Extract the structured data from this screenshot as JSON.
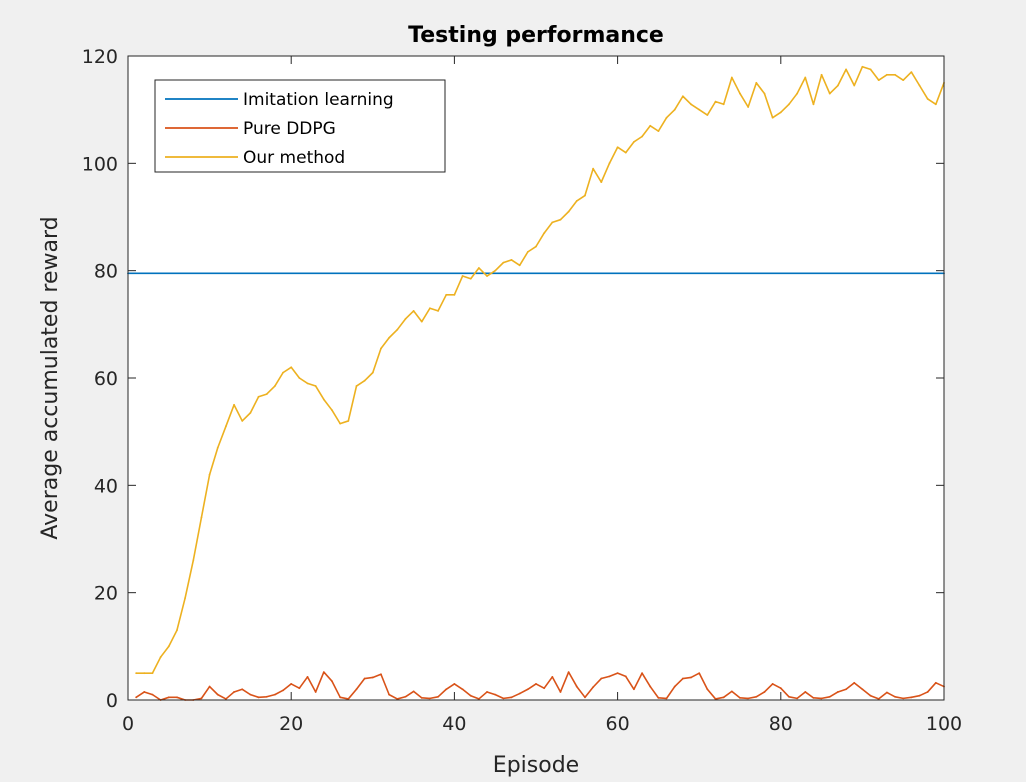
{
  "chart_data": {
    "type": "line",
    "title": "Testing performance",
    "xlabel": "Episode",
    "ylabel": "Average accumulated reward",
    "xlim": [
      0,
      100
    ],
    "ylim": [
      0,
      120
    ],
    "xticks": [
      0,
      20,
      40,
      60,
      80,
      100
    ],
    "yticks": [
      0,
      20,
      40,
      60,
      80,
      100,
      120
    ],
    "grid": false,
    "legend_position": "top-left",
    "series": [
      {
        "name": "Imitation learning",
        "color": "#0072BD",
        "x": [
          0,
          100
        ],
        "y": [
          79.5,
          79.5
        ]
      },
      {
        "name": "Pure DDPG",
        "color": "#D95319",
        "x": [
          1,
          2,
          3,
          4,
          5,
          6,
          7,
          8,
          9,
          10,
          11,
          12,
          13,
          14,
          15,
          16,
          17,
          18,
          19,
          20,
          21,
          22,
          23,
          24,
          25,
          26,
          27,
          28,
          29,
          30,
          31,
          32,
          33,
          34,
          35,
          36,
          37,
          38,
          39,
          40,
          41,
          42,
          43,
          44,
          45,
          46,
          47,
          48,
          49,
          50,
          51,
          52,
          53,
          54,
          55,
          56,
          57,
          58,
          59,
          60,
          61,
          62,
          63,
          64,
          65,
          66,
          67,
          68,
          69,
          70,
          71,
          72,
          73,
          74,
          75,
          76,
          77,
          78,
          79,
          80,
          81,
          82,
          83,
          84,
          85,
          86,
          87,
          88,
          89,
          90,
          91,
          92,
          93,
          94,
          95,
          96,
          97,
          98,
          99,
          100
        ],
        "y": [
          0.5,
          1.5,
          1,
          0,
          0.5,
          0.5,
          0,
          0,
          0.3,
          2.5,
          1,
          0.2,
          1.5,
          2,
          1,
          0.5,
          0.6,
          1,
          1.8,
          3,
          2.2,
          4.3,
          1.5,
          5.2,
          3.5,
          0.5,
          0.2,
          2,
          4,
          4.2,
          4.8,
          1,
          0.2,
          0.6,
          1.6,
          0.4,
          0.3,
          0.6,
          2,
          3,
          2,
          0.8,
          0.2,
          1.5,
          1,
          0.3,
          0.5,
          1.2,
          2,
          3,
          2.2,
          4.3,
          1.5,
          5.2,
          2.5,
          0.5,
          2.4,
          4,
          4.4,
          5,
          4.4,
          2,
          5,
          2.5,
          0.4,
          0.3,
          2.5,
          4,
          4.2,
          5,
          2,
          0.2,
          0.5,
          1.6,
          0.4,
          0.3,
          0.6,
          1.5,
          3,
          2.2,
          0.6,
          0.3,
          1.5,
          0.4,
          0.3,
          0.6,
          1.5,
          2,
          3.2,
          2,
          0.8,
          0.2,
          1.4,
          0.6,
          0.3,
          0.5,
          0.8,
          1.5,
          3.2,
          2.5
        ]
      },
      {
        "name": "Our method",
        "color": "#EDB120",
        "x": [
          1,
          2,
          3,
          4,
          5,
          6,
          7,
          8,
          9,
          10,
          11,
          12,
          13,
          14,
          15,
          16,
          17,
          18,
          19,
          20,
          21,
          22,
          23,
          24,
          25,
          26,
          27,
          28,
          29,
          30,
          31,
          32,
          33,
          34,
          35,
          36,
          37,
          38,
          39,
          40,
          41,
          42,
          43,
          44,
          45,
          46,
          47,
          48,
          49,
          50,
          51,
          52,
          53,
          54,
          55,
          56,
          57,
          58,
          59,
          60,
          61,
          62,
          63,
          64,
          65,
          66,
          67,
          68,
          69,
          70,
          71,
          72,
          73,
          74,
          75,
          76,
          77,
          78,
          79,
          80,
          81,
          82,
          83,
          84,
          85,
          86,
          87,
          88,
          89,
          90,
          91,
          92,
          93,
          94,
          95,
          96,
          97,
          98,
          99,
          100
        ],
        "y": [
          5,
          5,
          5,
          8,
          10,
          13,
          19,
          26,
          34,
          42,
          47,
          51,
          55,
          52,
          53.5,
          56.5,
          57,
          58.5,
          61,
          62,
          60,
          59,
          58.5,
          56,
          54,
          51.5,
          52,
          58.5,
          59.5,
          61,
          65.5,
          67.5,
          69,
          71,
          72.5,
          70.5,
          73,
          72.5,
          75.5,
          75.5,
          79,
          78.5,
          80.5,
          79,
          80,
          81.5,
          82,
          81,
          83.5,
          84.5,
          87,
          89,
          89.5,
          91,
          93,
          94,
          99,
          96.5,
          100,
          103,
          102,
          104,
          105,
          107,
          106,
          108.5,
          110,
          112.5,
          111,
          110,
          109,
          111.5,
          111,
          116,
          113,
          110.5,
          115,
          113,
          108.5,
          109.5,
          111,
          113,
          116,
          111,
          116.5,
          113,
          114.5,
          117.5,
          114.5,
          118,
          117.5,
          115.5,
          116.5,
          116.5,
          115.5,
          117,
          114.5,
          112,
          111,
          115
        ]
      }
    ]
  }
}
